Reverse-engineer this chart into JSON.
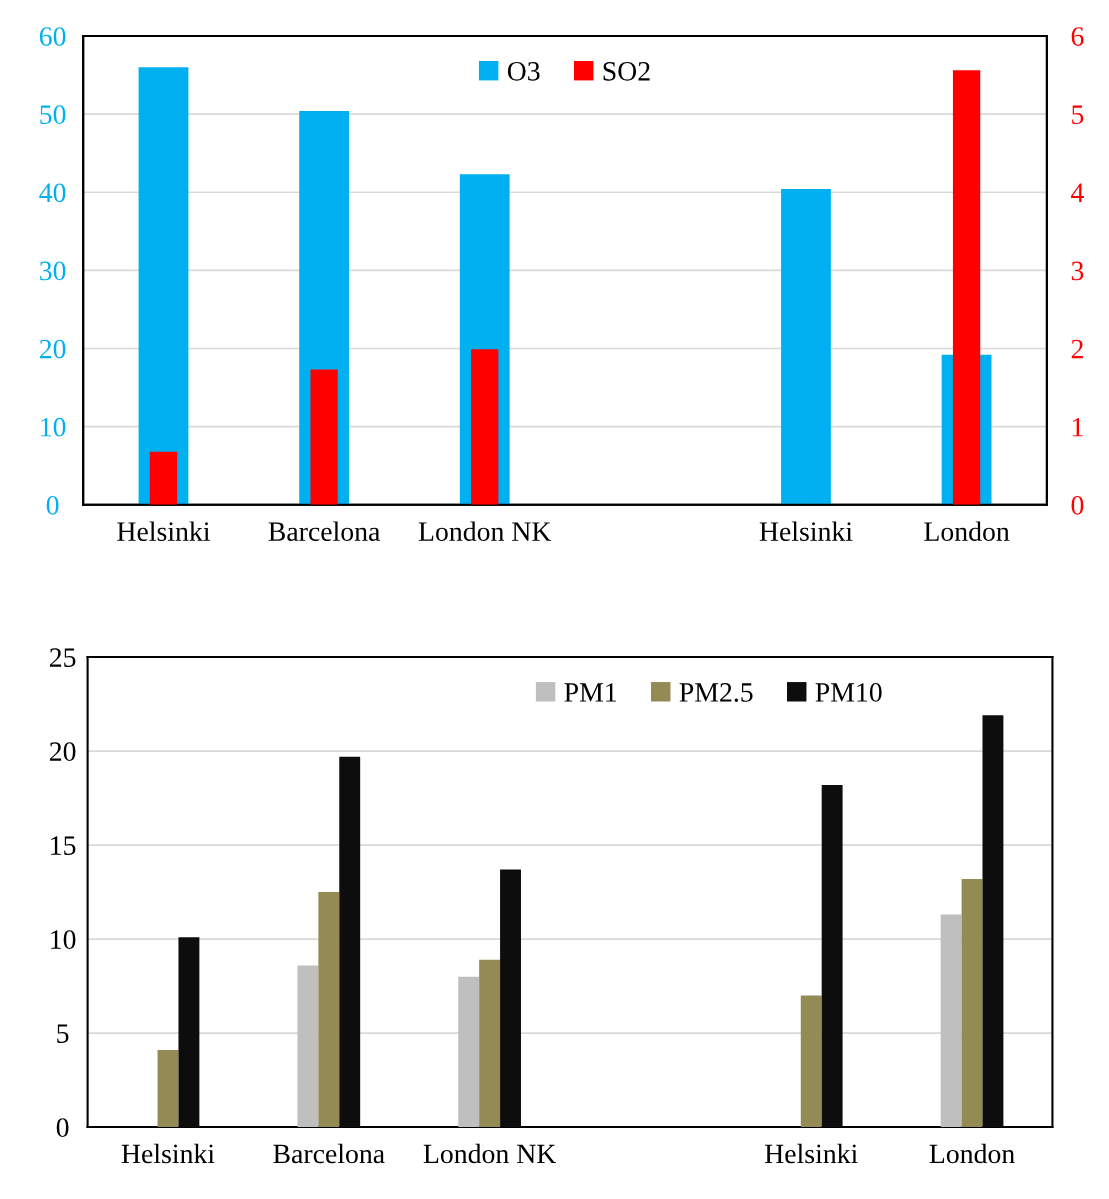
{
  "chart_data": [
    {
      "type": "bar",
      "categories": [
        "Helsinki",
        "Barcelona",
        "London NK",
        null,
        "Helsinki",
        "London"
      ],
      "series": [
        {
          "name": "O3",
          "color": "#00b0f0",
          "values": [
            56.0,
            50.4,
            42.3,
            null,
            40.4,
            19.2
          ]
        },
        {
          "name": "SO2",
          "color": "#ff0000",
          "axis": "y2",
          "values": [
            0.68,
            1.73,
            1.99,
            null,
            null,
            5.56
          ]
        }
      ],
      "ylim": [
        0,
        60
      ],
      "yticks": [
        0,
        10,
        20,
        30,
        40,
        50,
        60
      ],
      "y2lim": [
        0,
        6
      ],
      "y2ticks": [
        0,
        1,
        2,
        3,
        4,
        5,
        6
      ],
      "grid": "y",
      "legend": "top"
    },
    {
      "type": "bar",
      "categories": [
        "Helsinki",
        "Barcelona",
        "London NK",
        null,
        "Helsinki",
        "London"
      ],
      "series": [
        {
          "name": "PM1",
          "color": "#bfbfbf",
          "values": [
            null,
            8.6,
            8.0,
            null,
            null,
            11.3
          ]
        },
        {
          "name": "PM2.5",
          "color": "#948a54",
          "values": [
            4.1,
            12.5,
            8.9,
            null,
            7.0,
            13.2
          ]
        },
        {
          "name": "PM10",
          "color": "#0d0d0d",
          "values": [
            10.1,
            19.7,
            13.7,
            null,
            18.2,
            21.9
          ]
        }
      ],
      "ylim": [
        0,
        25
      ],
      "yticks": [
        0,
        5,
        10,
        15,
        20,
        25
      ],
      "grid": "y",
      "legend": "top right"
    }
  ]
}
